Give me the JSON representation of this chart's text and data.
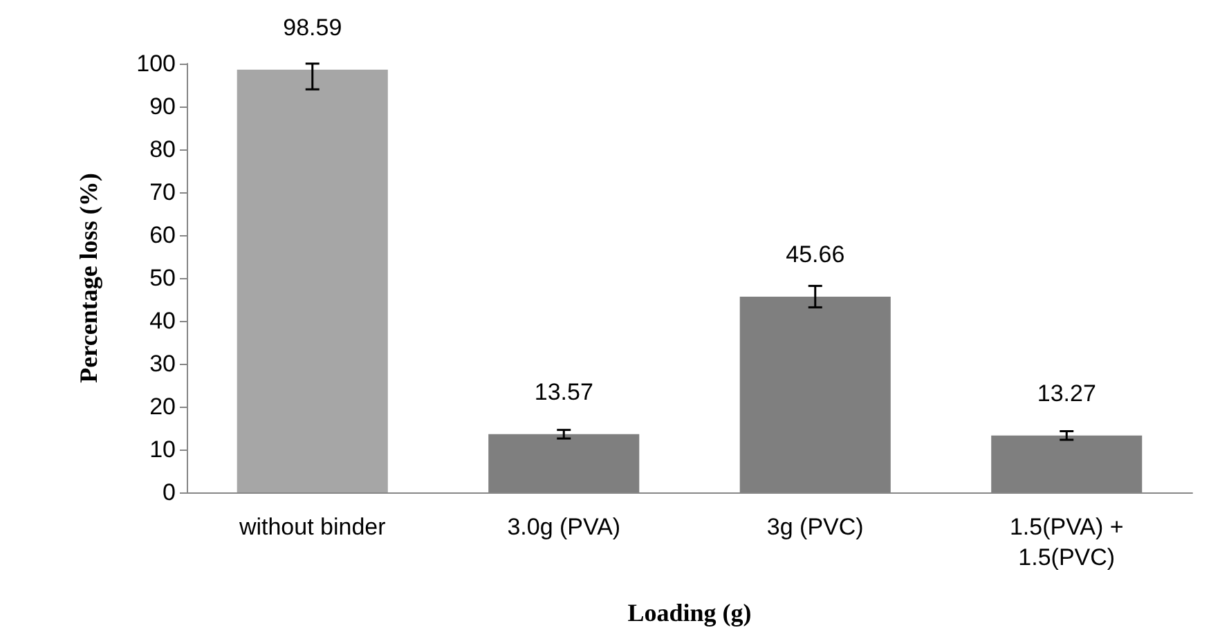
{
  "chart_data": {
    "type": "bar",
    "xlabel": "Loading (g)",
    "ylabel": "Percentage loss (%)",
    "categories": [
      "without binder",
      "3.0g (PVA)",
      "3g (PVC)",
      "1.5(PVA) +\n1.5(PVC)"
    ],
    "values": [
      98.59,
      13.57,
      45.66,
      13.27
    ],
    "colors": [
      "#a6a6a6",
      "#7f7f7f",
      "#7f7f7f",
      "#7f7f7f"
    ],
    "errors": [
      [
        94,
        100
      ],
      1,
      2.5,
      1
    ],
    "ylim": [
      0,
      100
    ],
    "yticks": [
      0,
      10,
      20,
      30,
      40,
      50,
      60,
      70,
      80,
      90,
      100
    ],
    "grid": false,
    "data_labels": true
  }
}
